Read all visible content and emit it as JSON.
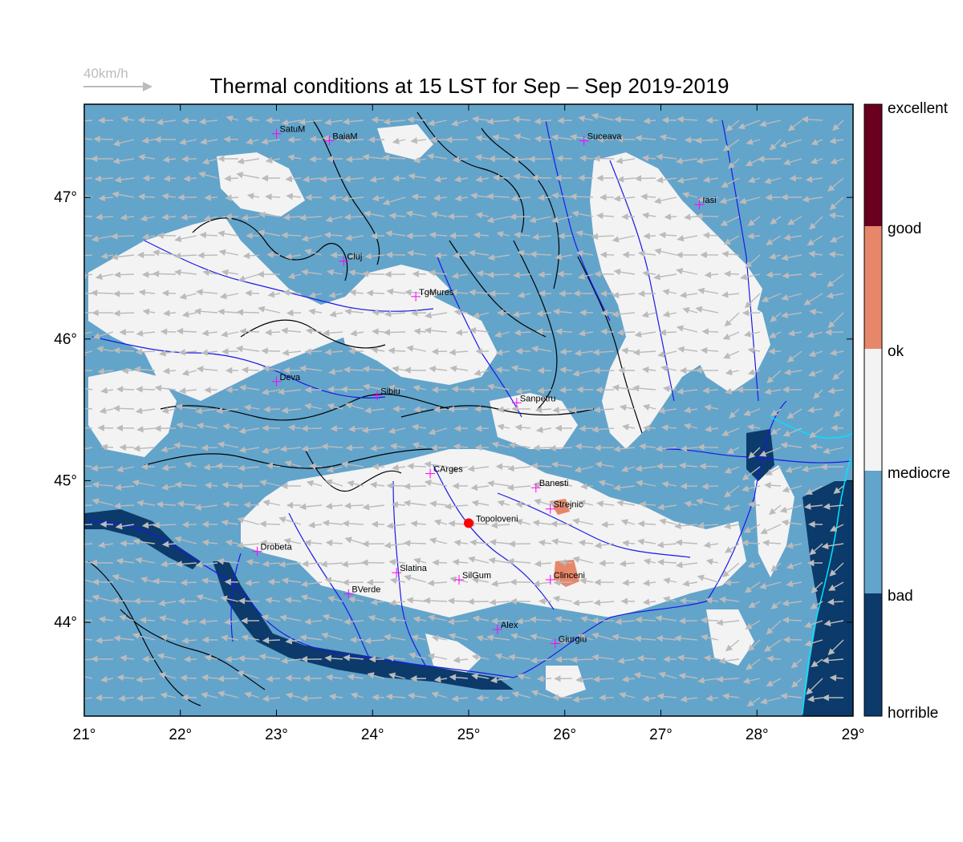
{
  "title": "Thermal conditions at 15 LST for Sep – Sep  2019-2019",
  "wind_scale": {
    "label": "40km/h"
  },
  "axes": {
    "lon_ticks": [
      "21°",
      "22°",
      "23°",
      "24°",
      "25°",
      "26°",
      "27°",
      "28°",
      "29°"
    ],
    "lat_ticks": [
      "44°",
      "45°",
      "46°",
      "47°"
    ]
  },
  "legend": {
    "classes": [
      {
        "label": "horrible",
        "color": "#0b3a6b"
      },
      {
        "label": "bad",
        "color": "#63a4cb"
      },
      {
        "label": "mediocre",
        "color": "#f3f3f3"
      },
      {
        "label": "ok",
        "color": "#e6876a"
      },
      {
        "label": "good",
        "color": "#6a0020"
      },
      {
        "label": "excellent",
        "color": "#6a0020"
      }
    ],
    "boundary_labels": [
      "horrible",
      "bad",
      "mediocre",
      "ok",
      "good",
      "excellent"
    ]
  },
  "cities": [
    {
      "name": "SatuM",
      "lon": 23.0,
      "lat": 47.45
    },
    {
      "name": "BaiaM",
      "lon": 23.55,
      "lat": 47.4
    },
    {
      "name": "Suceava",
      "lon": 26.2,
      "lat": 47.4
    },
    {
      "name": "Iasi",
      "lon": 27.4,
      "lat": 46.95
    },
    {
      "name": "Cluj",
      "lon": 23.7,
      "lat": 46.55
    },
    {
      "name": "TgMures",
      "lon": 24.45,
      "lat": 46.3
    },
    {
      "name": "Deva",
      "lon": 23.0,
      "lat": 45.7
    },
    {
      "name": "Sibiu",
      "lon": 24.05,
      "lat": 45.6
    },
    {
      "name": "Sanpetru",
      "lon": 25.5,
      "lat": 45.55
    },
    {
      "name": "CArges",
      "lon": 24.6,
      "lat": 45.05
    },
    {
      "name": "Banesti",
      "lon": 25.7,
      "lat": 44.95
    },
    {
      "name": "Strejnic",
      "lon": 25.85,
      "lat": 44.8
    },
    {
      "name": "Drobeta",
      "lon": 22.8,
      "lat": 44.5
    },
    {
      "name": "Slatina",
      "lon": 24.25,
      "lat": 44.35
    },
    {
      "name": "SilGum",
      "lon": 24.9,
      "lat": 44.3
    },
    {
      "name": "Clinceni",
      "lon": 25.85,
      "lat": 44.3
    },
    {
      "name": "BVerde",
      "lon": 23.75,
      "lat": 44.2
    },
    {
      "name": "Alex",
      "lon": 25.3,
      "lat": 43.95
    },
    {
      "name": "Giurgiu",
      "lon": 25.9,
      "lat": 43.85
    }
  ],
  "site": {
    "name": "Topoloveni",
    "lon": 25.0,
    "lat": 44.7
  },
  "colors": {
    "horrible": "#0b3a6b",
    "bad": "#63a4cb",
    "mediocre": "#f3f3f3",
    "ok": "#e6876a",
    "good": "#6a0020",
    "rivers": "#1a1ae6",
    "coast": "#00e5ff",
    "contours": "#000000",
    "wind_arrows": "#bbbbbb",
    "city_marker": "#ff00ff",
    "site_marker": "#ff0000"
  }
}
